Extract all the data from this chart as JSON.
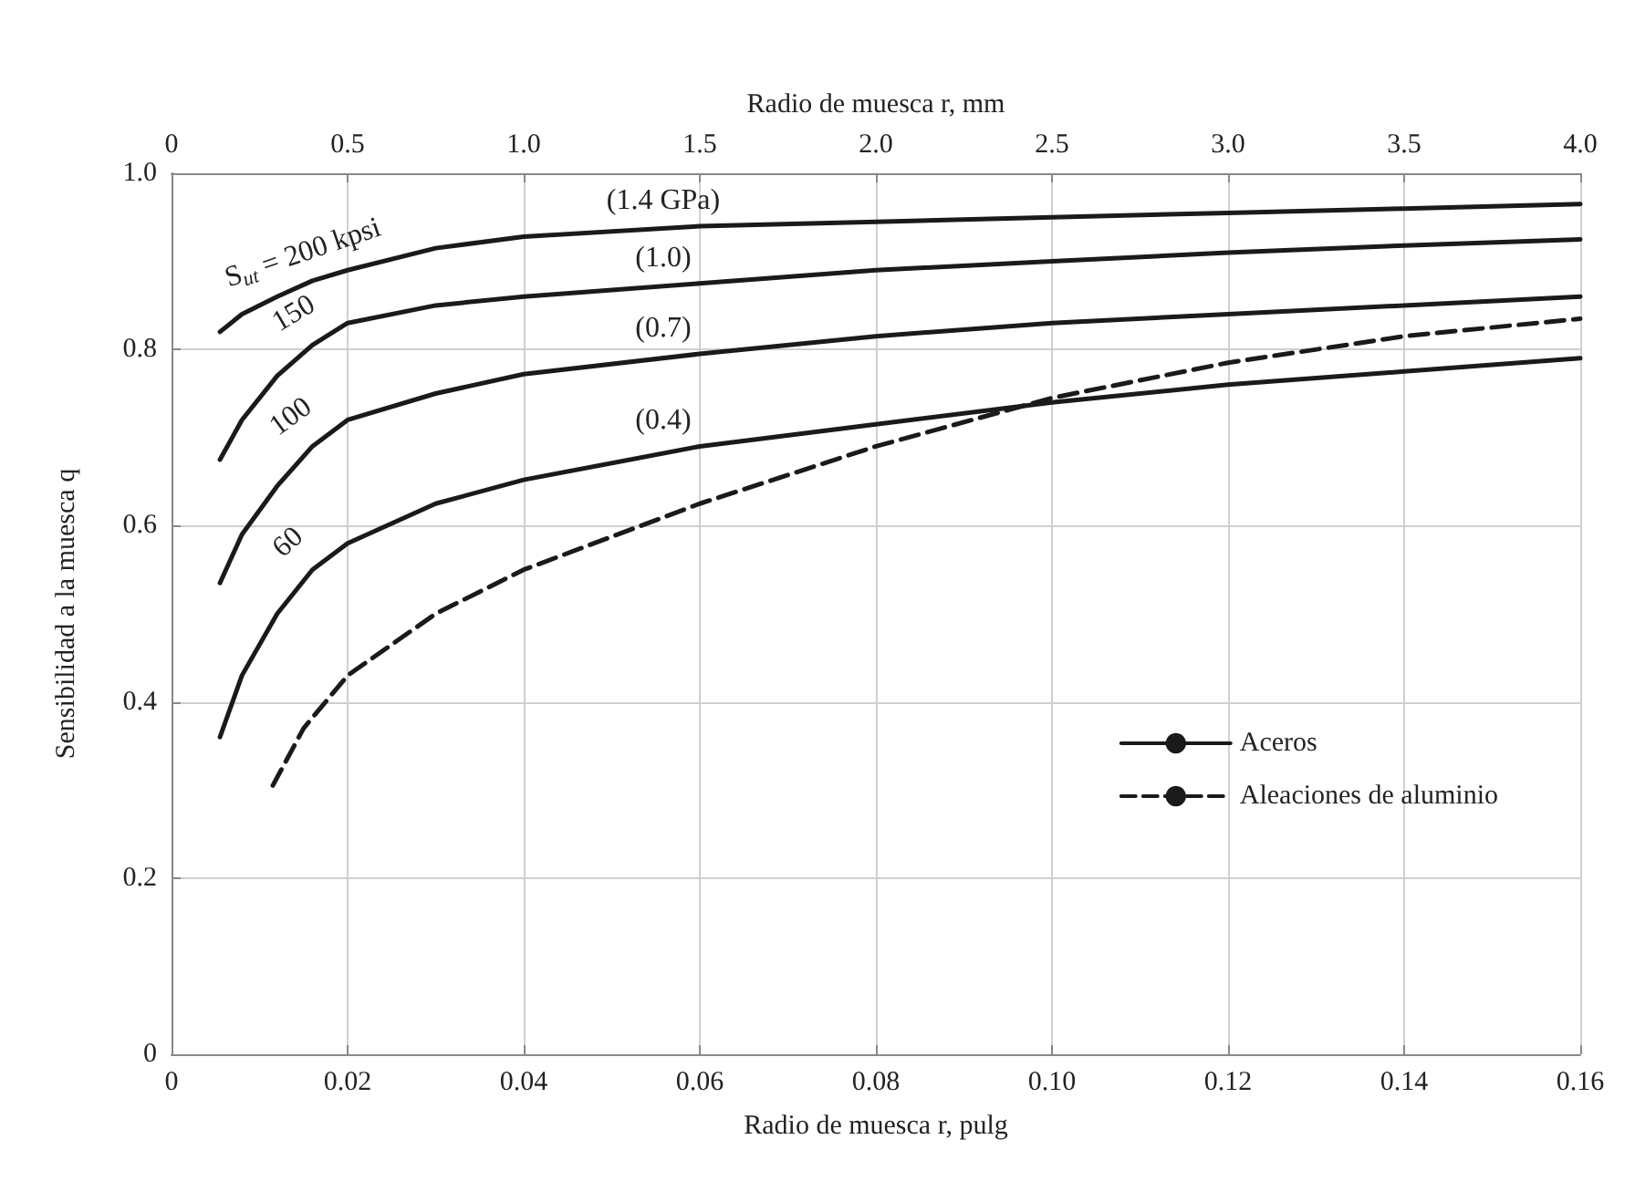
{
  "chart_data": {
    "type": "line",
    "xlabel": "Radio de muesca r, pulg",
    "x2label": "Radio de muesca r, mm",
    "ylabel": "Sensibilidad a la muesca q",
    "xlim": [
      0,
      0.16
    ],
    "xticks": [
      0,
      0.02,
      0.04,
      0.06,
      0.08,
      {
        "value": 0.1,
        "label": "0.10"
      },
      0.12,
      0.14,
      0.16
    ],
    "x2lim": [
      0,
      4.0
    ],
    "x2ticks": [
      0,
      0.5,
      {
        "value": 1,
        "label": "1.0"
      },
      1.5,
      {
        "value": 2,
        "label": "2.0"
      },
      2.5,
      {
        "value": 3,
        "label": "3.0"
      },
      3.5,
      {
        "value": 4,
        "label": "4.0"
      }
    ],
    "ylim": [
      0,
      1
    ],
    "yticks": [
      0,
      0.2,
      0.4,
      0.6,
      0.8,
      {
        "value": 1,
        "label": "1.0"
      }
    ],
    "grid": true,
    "legend": "right",
    "marker": "none",
    "series": [
      {
        "name": "Aceros",
        "color": "#1a1a1a",
        "line_style": "solid",
        "x": [
          0.0055,
          0.008,
          0.012,
          0.016,
          0.02,
          0.03,
          0.04,
          0.06,
          0.08,
          0.1,
          0.12,
          0.14,
          0.16
        ],
        "values": [
          0.82,
          0.84,
          0.86,
          0.878,
          0.89,
          0.915,
          0.928,
          0.94,
          0.945,
          0.95,
          0.955,
          0.96,
          0.965
        ]
      },
      {
        "color": "#1a1a1a",
        "line_style": "solid",
        "x": [
          0.0055,
          0.008,
          0.012,
          0.016,
          0.02,
          0.03,
          0.04,
          0.06,
          0.08,
          0.1,
          0.12,
          0.14,
          0.16
        ],
        "values": [
          0.675,
          0.72,
          0.77,
          0.805,
          0.83,
          0.85,
          0.86,
          0.875,
          0.89,
          0.9,
          0.91,
          0.918,
          0.925
        ]
      },
      {
        "color": "#1a1a1a",
        "line_style": "solid",
        "x": [
          0.0055,
          0.008,
          0.012,
          0.016,
          0.02,
          0.03,
          0.04,
          0.06,
          0.08,
          0.1,
          0.12,
          0.14,
          0.16
        ],
        "values": [
          0.535,
          0.59,
          0.645,
          0.69,
          0.72,
          0.75,
          0.772,
          0.795,
          0.815,
          0.83,
          0.84,
          0.85,
          0.86
        ]
      },
      {
        "color": "#1a1a1a",
        "line_style": "solid",
        "x": [
          0.0055,
          0.008,
          0.012,
          0.016,
          0.02,
          0.03,
          0.04,
          0.06,
          0.08,
          0.1,
          0.12,
          0.14,
          0.16
        ],
        "values": [
          0.36,
          0.43,
          0.5,
          0.55,
          0.58,
          0.625,
          0.652,
          0.69,
          0.715,
          0.74,
          0.76,
          0.775,
          0.79
        ]
      },
      {
        "name": "Aleaciones de aluminio",
        "color": "#1a1a1a",
        "line_style": "dashed",
        "x": [
          0.0115,
          0.015,
          0.02,
          0.03,
          0.04,
          0.06,
          0.08,
          0.1,
          0.12,
          0.14,
          0.16
        ],
        "values": [
          0.305,
          0.37,
          0.43,
          0.5,
          0.55,
          0.625,
          0.69,
          0.745,
          0.785,
          0.815,
          0.835
        ]
      }
    ],
    "annotations": [
      "S$_{ut}$ = 200 kpsi",
      "(1.4 GPa)",
      "150",
      "(1.0)",
      "100",
      "(0.7)",
      "60",
      "(0.4)"
    ]
  }
}
